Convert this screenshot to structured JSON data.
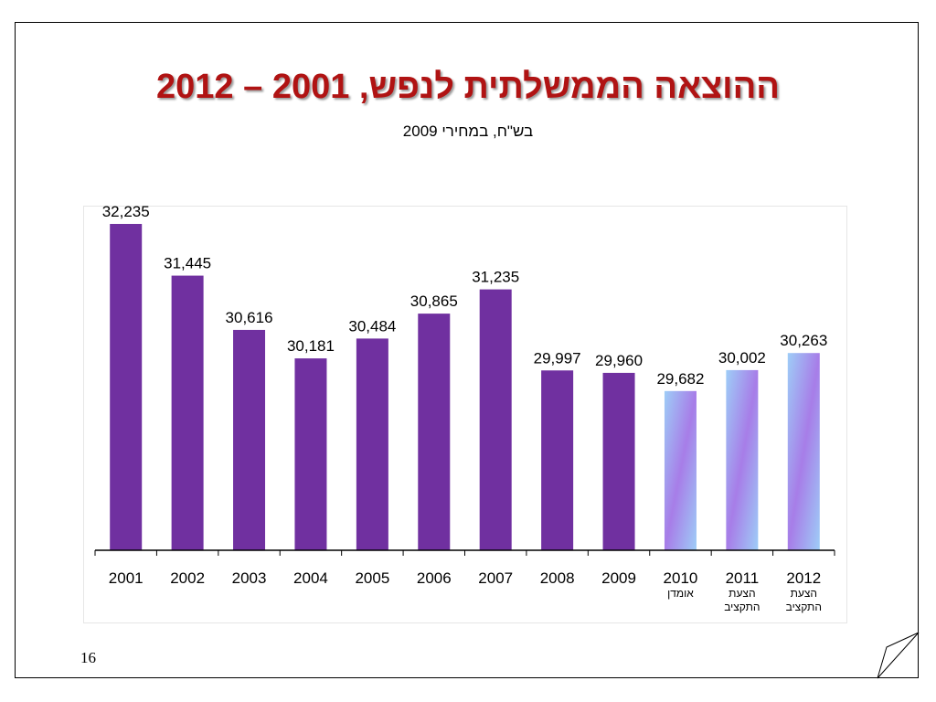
{
  "slide": {
    "title": "ההוצאה הממשלתית לנפש, 2001 – 2012",
    "subtitle": "בש\"ח, במחירי 2009",
    "page_number": "16"
  },
  "colors": {
    "title": "#b01313",
    "bar_actual": "#7030a0",
    "bar_forecast_light": "#9ecdf7",
    "bar_forecast_dark": "#a77de8"
  },
  "chart_data": {
    "type": "bar",
    "title": "",
    "xlabel": "",
    "ylabel": "",
    "categories": [
      "2001",
      "2002",
      "2003",
      "2004",
      "2005",
      "2006",
      "2007",
      "2008",
      "2009",
      "2010",
      "2011",
      "2012"
    ],
    "category_notes": [
      "",
      "",
      "",
      "",
      "",
      "",
      "",
      "",
      "",
      "אומדן",
      "הצעת התקציב",
      "הצעת התקציב"
    ],
    "values": [
      32235,
      31445,
      30616,
      30181,
      30484,
      30865,
      31235,
      29997,
      29960,
      29682,
      30002,
      30263
    ],
    "value_labels": [
      "32,235",
      "31,445",
      "30,616",
      "30,181",
      "30,484",
      "30,865",
      "31,235",
      "29,997",
      "29,960",
      "29,682",
      "30,002",
      "30,263"
    ],
    "bar_style": [
      "actual",
      "actual",
      "actual",
      "actual",
      "actual",
      "actual",
      "actual",
      "actual",
      "actual",
      "forecast",
      "forecast",
      "forecast"
    ],
    "ylim": [
      27250,
      32500
    ],
    "grid": false,
    "legend": "none"
  }
}
